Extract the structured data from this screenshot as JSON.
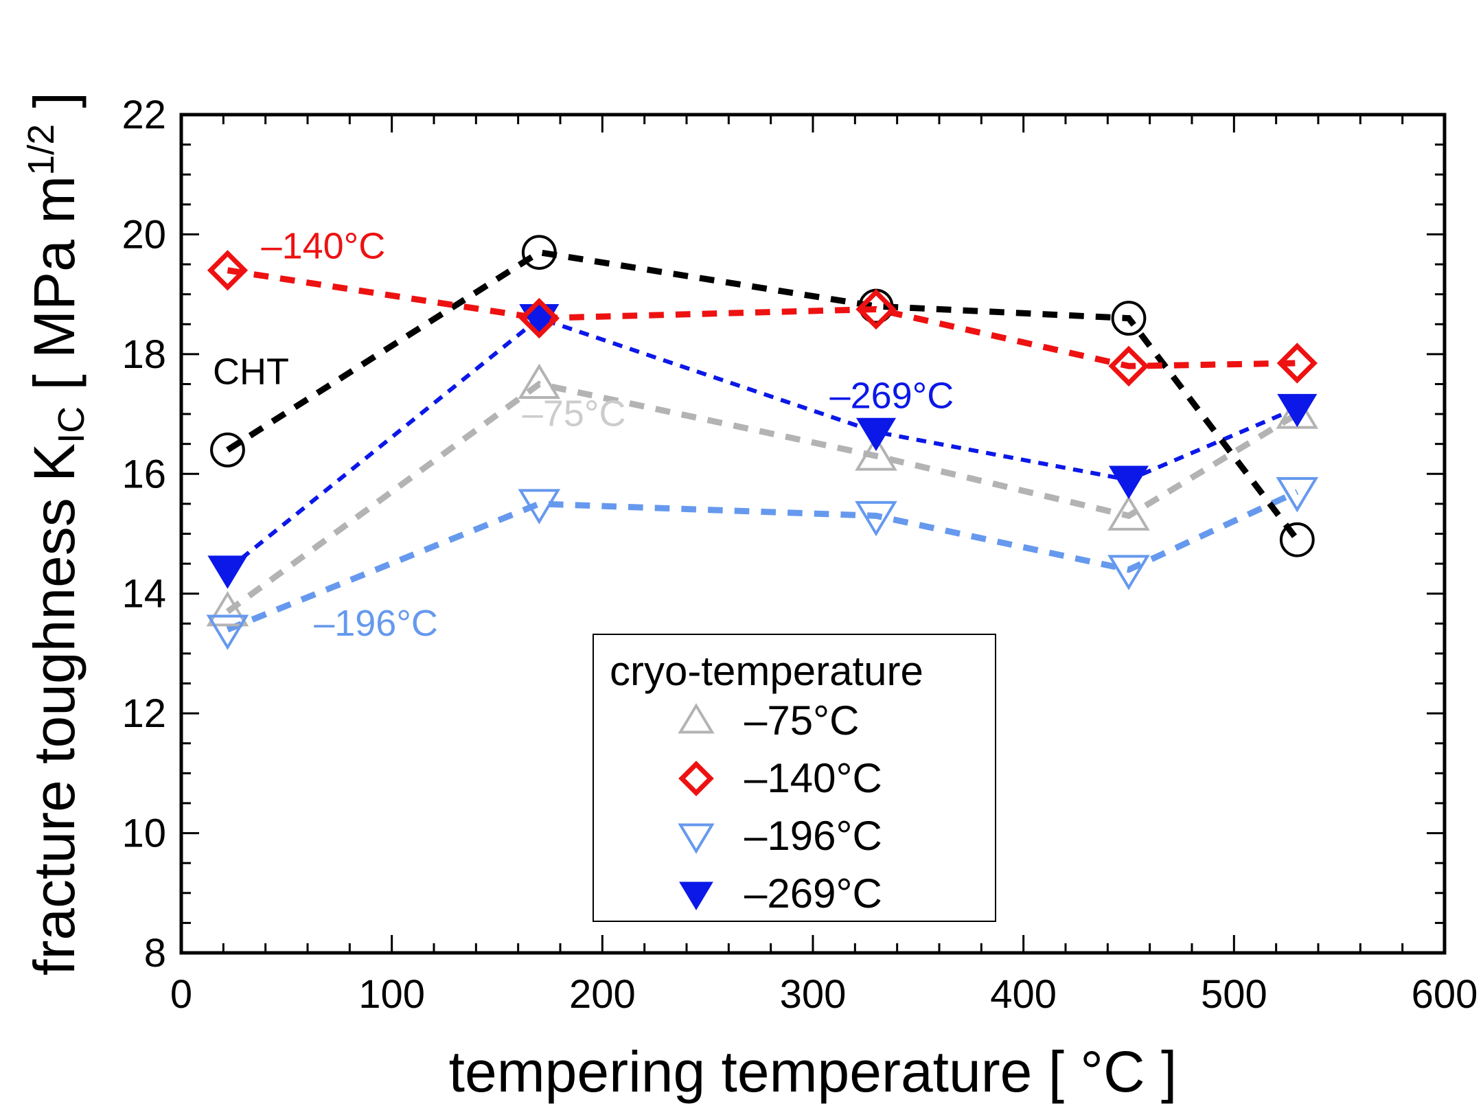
{
  "chart_data": {
    "type": "line",
    "xlabel": "tempering temperature  [ °C ]",
    "ylabel_main": "fracture toughness  K",
    "ylabel_sub": "IC",
    "ylabel_unit": "  [ MPa m",
    "ylabel_sup": "1/2",
    "ylabel_end": " ]",
    "xlim": [
      0,
      600
    ],
    "ylim": [
      8,
      22
    ],
    "xticks": [
      0,
      100,
      200,
      300,
      400,
      500,
      600
    ],
    "yticks": [
      8,
      10,
      12,
      14,
      16,
      18,
      20,
      22
    ],
    "grid": false,
    "legend": {
      "title": "cryo-temperature",
      "placement": "center-bottom",
      "entries": [
        "–75°C",
        "–140°C",
        "–196°C",
        "–269°C"
      ]
    },
    "series": [
      {
        "name": "CHT",
        "color": "#000000",
        "marker": "circle-open",
        "x": [
          22,
          170,
          330,
          450,
          530
        ],
        "y": [
          16.4,
          19.7,
          18.8,
          18.6,
          14.9
        ]
      },
      {
        "name": "–75°C",
        "color": "#b3b3b3",
        "marker": "triangle-up-open",
        "x": [
          22,
          170,
          330,
          450,
          530
        ],
        "y": [
          13.7,
          17.5,
          16.3,
          15.3,
          17.0
        ]
      },
      {
        "name": "–140°C",
        "color": "#ee1111",
        "marker": "diamond-open",
        "x": [
          22,
          170,
          330,
          450,
          530
        ],
        "y": [
          19.4,
          18.6,
          18.75,
          17.8,
          17.85
        ]
      },
      {
        "name": "–196°C",
        "color": "#6699ee",
        "marker": "triangle-down-open",
        "x": [
          22,
          170,
          330,
          450,
          530
        ],
        "y": [
          13.4,
          15.5,
          15.3,
          14.4,
          15.7
        ]
      },
      {
        "name": "–269°C",
        "color": "#0b18e8",
        "marker": "triangle-down-filled",
        "x": [
          22,
          170,
          330,
          450,
          530
        ],
        "y": [
          14.4,
          18.6,
          16.7,
          15.9,
          17.1
        ]
      }
    ],
    "annotations": [
      {
        "text": "–140°C",
        "x": 38,
        "y": 19.6,
        "color": "#ee1111"
      },
      {
        "text": "CHT",
        "x": 15,
        "y": 17.5,
        "color": "#000000"
      },
      {
        "text": "–75°C",
        "x": 162,
        "y": 16.8,
        "color": "#cccccc"
      },
      {
        "text": "–269°C",
        "x": 308,
        "y": 17.1,
        "color": "#0b18e8"
      },
      {
        "text": "–196°C",
        "x": 63,
        "y": 13.3,
        "color": "#6699ee"
      }
    ]
  }
}
